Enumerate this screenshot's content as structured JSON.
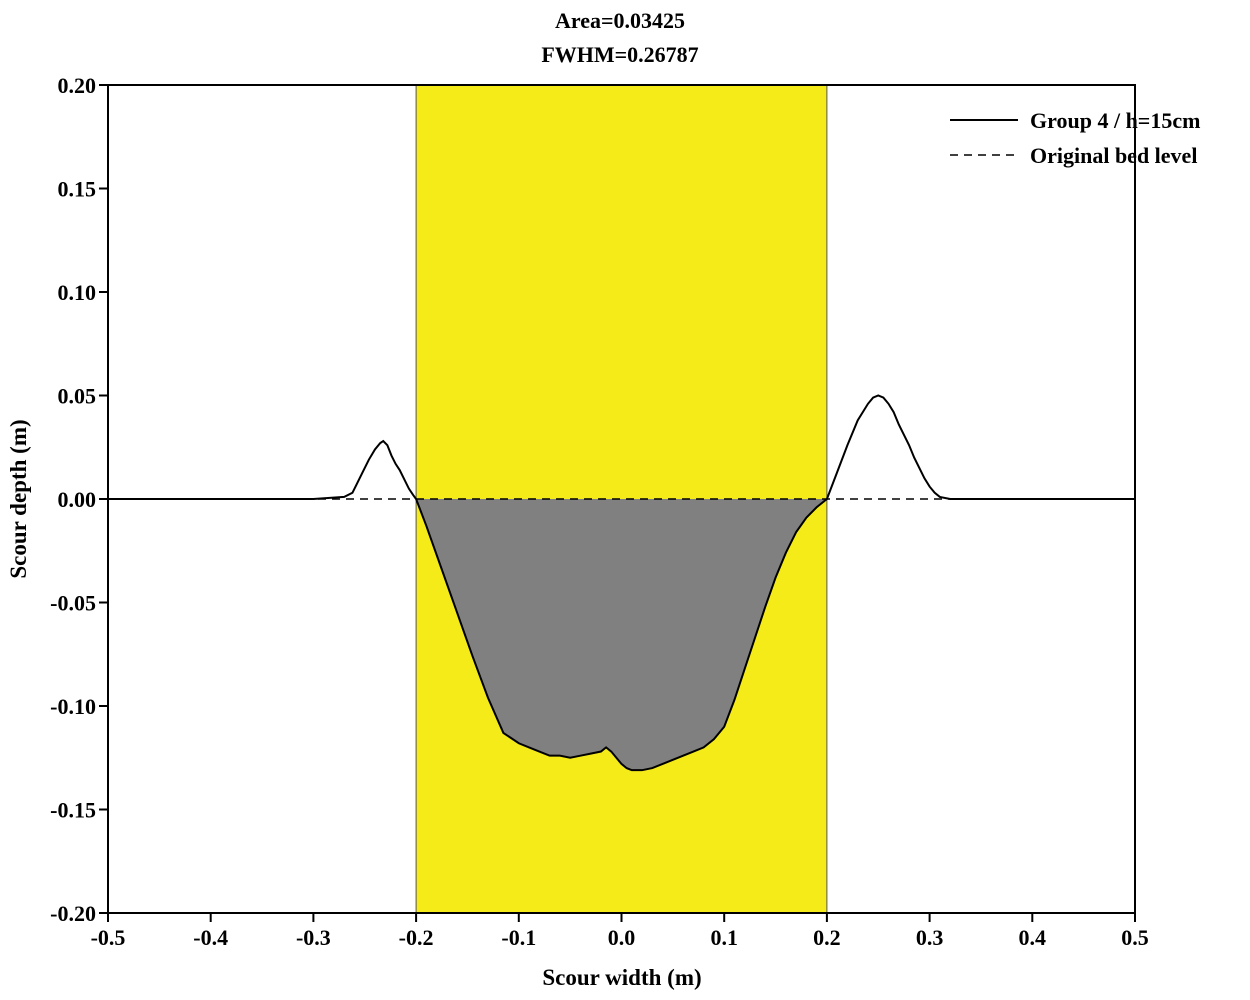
{
  "chart_data": {
    "type": "line",
    "title_lines": [
      "Area=0.03425",
      "FWHM=0.26787"
    ],
    "xlabel": "Scour width (m)",
    "ylabel": "Scour depth (m)",
    "xlim": [
      -0.5,
      0.5
    ],
    "ylim": [
      -0.2,
      0.2
    ],
    "xticks": [
      -0.5,
      -0.4,
      -0.3,
      -0.2,
      -0.1,
      0.0,
      0.1,
      0.2,
      0.3,
      0.4,
      0.5
    ],
    "xtick_labels": [
      "-0.5",
      "-0.4",
      "-0.3",
      "-0.2",
      "-0.1",
      "0.0",
      "0.1",
      "0.2",
      "0.3",
      "0.4",
      "0.5"
    ],
    "yticks": [
      0.2,
      0.15,
      0.1,
      0.05,
      0.0,
      -0.05,
      -0.1,
      -0.15,
      -0.2
    ],
    "ytick_labels": [
      "0.20",
      "0.15",
      "0.10",
      "0.05",
      "0.00",
      "-0.05",
      "-0.10",
      "-0.15",
      "-0.20"
    ],
    "grid": false,
    "legend_position": "top-right",
    "highlight_band": {
      "x_range": [
        -0.2,
        0.2
      ],
      "color": "#f5eb18"
    },
    "fill_color": "#808080",
    "series": [
      {
        "name": "Group 4 / h=15cm",
        "style": "solid",
        "color": "#000000",
        "x": [
          -0.5,
          -0.3,
          -0.27,
          -0.262,
          -0.258,
          -0.252,
          -0.246,
          -0.24,
          -0.235,
          -0.232,
          -0.228,
          -0.224,
          -0.22,
          -0.216,
          -0.212,
          -0.207,
          -0.203,
          -0.2,
          -0.19,
          -0.175,
          -0.16,
          -0.145,
          -0.13,
          -0.115,
          -0.1,
          -0.09,
          -0.08,
          -0.07,
          -0.06,
          -0.05,
          -0.04,
          -0.03,
          -0.02,
          -0.015,
          -0.01,
          -0.005,
          0.0,
          0.005,
          0.01,
          0.015,
          0.02,
          0.03,
          0.04,
          0.05,
          0.06,
          0.07,
          0.08,
          0.09,
          0.1,
          0.11,
          0.12,
          0.13,
          0.14,
          0.15,
          0.16,
          0.17,
          0.18,
          0.19,
          0.2,
          0.21,
          0.22,
          0.23,
          0.24,
          0.245,
          0.25,
          0.255,
          0.26,
          0.265,
          0.27,
          0.275,
          0.28,
          0.285,
          0.29,
          0.295,
          0.3,
          0.305,
          0.31,
          0.32,
          0.33,
          0.5
        ],
        "y": [
          0.0,
          0.0,
          0.001,
          0.003,
          0.007,
          0.013,
          0.019,
          0.024,
          0.027,
          0.028,
          0.026,
          0.021,
          0.017,
          0.014,
          0.01,
          0.005,
          0.002,
          0.0,
          -0.013,
          -0.034,
          -0.055,
          -0.076,
          -0.096,
          -0.113,
          -0.118,
          -0.12,
          -0.122,
          -0.124,
          -0.124,
          -0.125,
          -0.124,
          -0.123,
          -0.122,
          -0.12,
          -0.122,
          -0.125,
          -0.128,
          -0.13,
          -0.131,
          -0.131,
          -0.131,
          -0.13,
          -0.128,
          -0.126,
          -0.124,
          -0.122,
          -0.12,
          -0.116,
          -0.11,
          -0.097,
          -0.082,
          -0.067,
          -0.052,
          -0.038,
          -0.026,
          -0.016,
          -0.009,
          -0.004,
          0.0,
          0.013,
          0.026,
          0.038,
          0.046,
          0.049,
          0.05,
          0.049,
          0.046,
          0.042,
          0.036,
          0.031,
          0.026,
          0.02,
          0.015,
          0.01,
          0.006,
          0.003,
          0.001,
          0.0,
          0.0,
          0.0
        ]
      },
      {
        "name": "Original bed level",
        "style": "dashed",
        "color": "#000000",
        "x": [
          -0.5,
          0.5
        ],
        "y": [
          0.0,
          0.0
        ]
      }
    ]
  }
}
